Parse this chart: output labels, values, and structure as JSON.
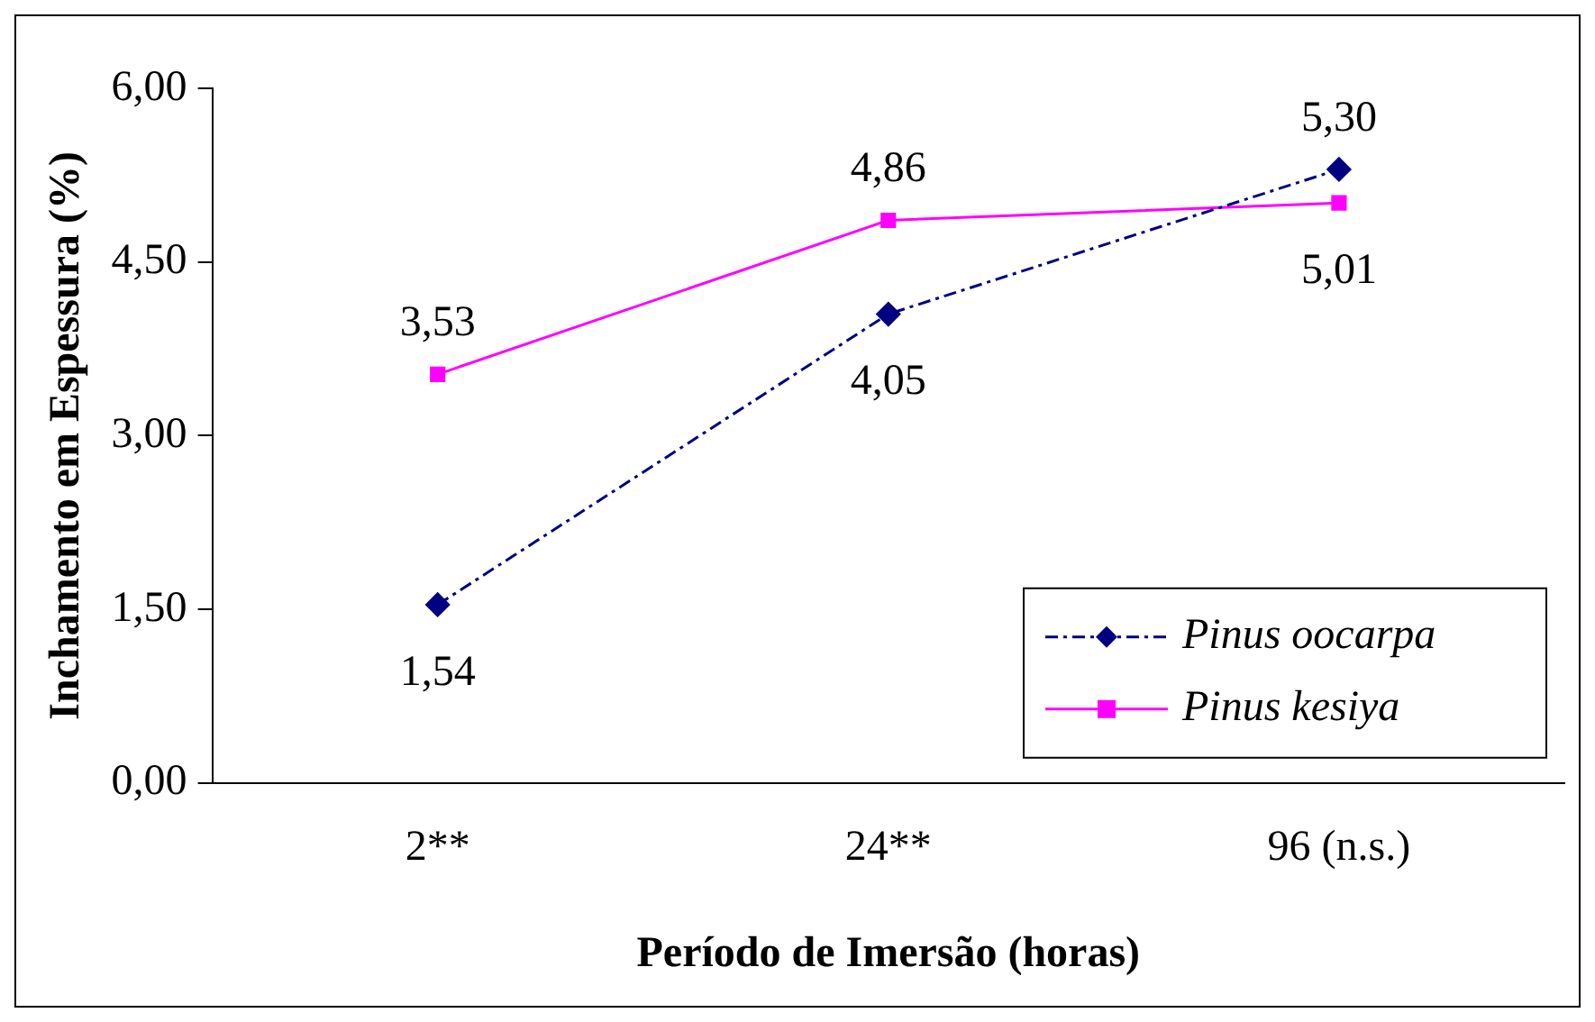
{
  "chart_data": {
    "type": "line",
    "xlabel": "Período de Imersão (horas)",
    "ylabel": "Inchamento em Espessura (%)",
    "categories": [
      "2**",
      "24**",
      "96 (n.s.)"
    ],
    "series": [
      {
        "name": "Pinus oocarpa",
        "color": "#000080",
        "values": [
          1.54,
          4.05,
          5.3
        ],
        "value_labels": [
          "1,54",
          "4,05",
          "5,30"
        ],
        "marker": "diamond",
        "line_style": "dashed"
      },
      {
        "name": "Pinus kesiya",
        "color": "#ff00ff",
        "values": [
          3.53,
          4.86,
          5.01
        ],
        "value_labels": [
          "3,53",
          "4,86",
          "5,01"
        ],
        "marker": "square",
        "line_style": "solid"
      }
    ],
    "ylim": [
      0,
      6
    ],
    "yticks": [
      {
        "value": 0,
        "label": "0,00"
      },
      {
        "value": 1.5,
        "label": "1,50"
      },
      {
        "value": 3,
        "label": "3,00"
      },
      {
        "value": 4.5,
        "label": "4,50"
      },
      {
        "value": 6,
        "label": "6,00"
      }
    ],
    "grid": false,
    "legend": "bottom right"
  }
}
